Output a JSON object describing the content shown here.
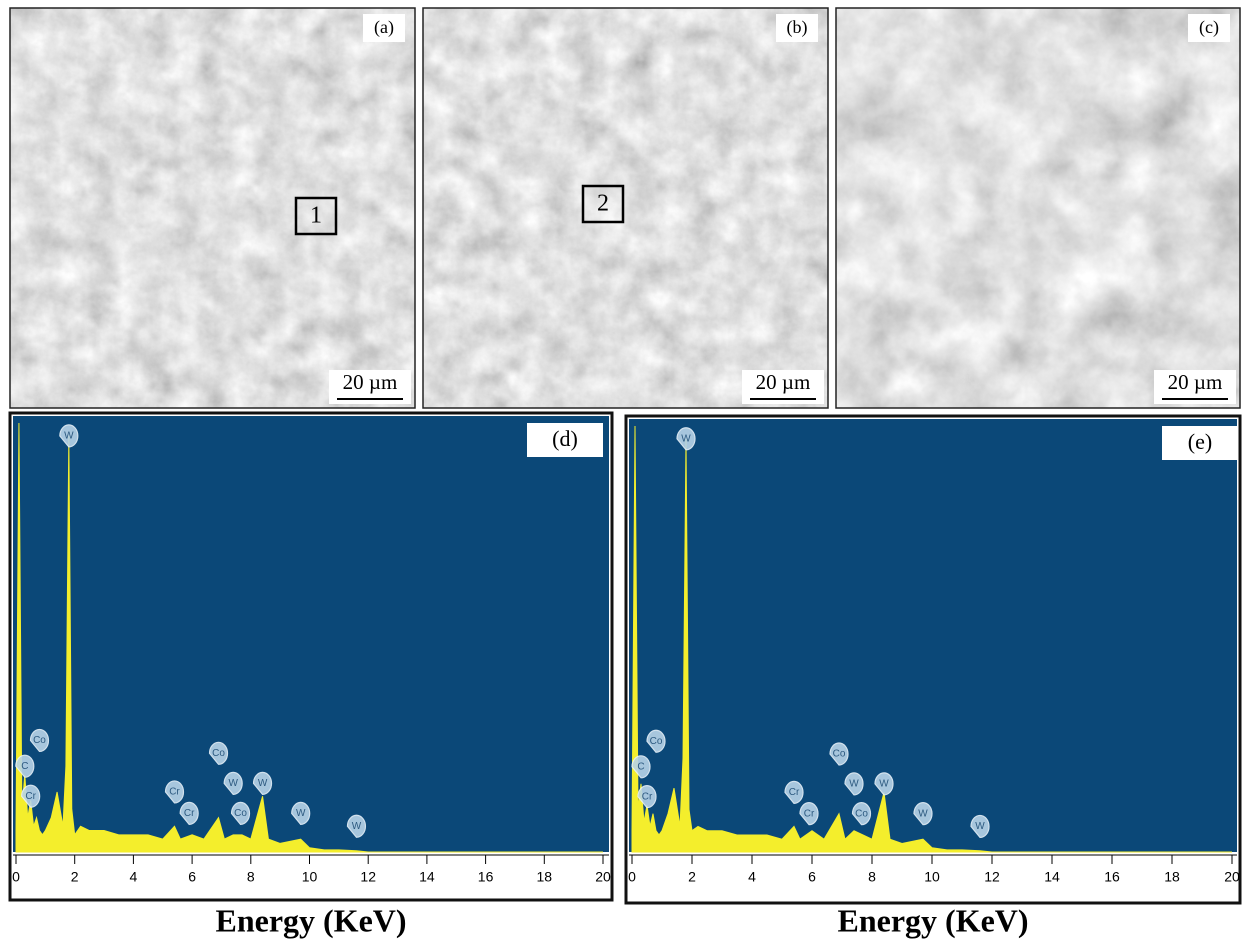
{
  "images": [
    {
      "label": "(a)",
      "scale_bar": "20 µm",
      "region": "1"
    },
    {
      "label": "(b)",
      "scale_bar": "20 µm",
      "region": "2"
    },
    {
      "label": "(c)",
      "scale_bar": "20 µm"
    }
  ],
  "chart_data": [
    {
      "type": "area",
      "label": "(d)",
      "x_label": "Energy (KeV)",
      "color": "#f4ee2c",
      "x": [
        0,
        0.1,
        0.2,
        0.3,
        0.4,
        0.5,
        0.6,
        0.7,
        0.8,
        0.9,
        1.0,
        1.2,
        1.4,
        1.6,
        1.7,
        1.8,
        1.9,
        2.0,
        2.2,
        2.5,
        3,
        3.5,
        4,
        4.5,
        5,
        5.4,
        5.6,
        6,
        6.4,
        6.9,
        7.1,
        7.4,
        7.7,
        8,
        8.4,
        8.6,
        9,
        9.7,
        10,
        10.5,
        11,
        11.6,
        12,
        13,
        14,
        16,
        18,
        20
      ],
      "values": [
        5,
        100,
        10,
        18,
        8,
        12,
        6,
        8,
        5,
        4,
        5,
        8,
        14,
        6,
        20,
        97,
        10,
        4,
        6,
        5,
        5,
        4,
        4,
        4,
        3,
        6,
        3,
        4,
        3,
        8,
        3,
        4,
        4,
        3,
        13,
        3,
        2,
        3,
        1,
        0.5,
        0.5,
        0.3,
        0,
        0,
        0,
        0,
        0,
        0
      ],
      "xlim": [
        0,
        20
      ],
      "xticks": [
        0,
        2,
        4,
        6,
        8,
        10,
        12,
        14,
        16,
        18,
        20
      ],
      "ylim": [
        0,
        100
      ],
      "peaks": [
        {
          "label": "C",
          "x": 0.3,
          "y": 20
        },
        {
          "label": "Co",
          "x": 0.8,
          "y": 26
        },
        {
          "label": "Cr",
          "x": 0.5,
          "y": 13
        },
        {
          "label": "W",
          "x": 1.8,
          "y": 97
        },
        {
          "label": "Cr",
          "x": 5.4,
          "y": 14
        },
        {
          "label": "Cr",
          "x": 5.9,
          "y": 9
        },
        {
          "label": "Co",
          "x": 6.9,
          "y": 23
        },
        {
          "label": "W",
          "x": 7.4,
          "y": 16
        },
        {
          "label": "Co",
          "x": 7.65,
          "y": 9
        },
        {
          "label": "W",
          "x": 8.4,
          "y": 16
        },
        {
          "label": "W",
          "x": 9.7,
          "y": 9
        },
        {
          "label": "W",
          "x": 11.6,
          "y": 6
        }
      ]
    },
    {
      "type": "area",
      "label": "(e)",
      "x_label": "Energy (KeV)",
      "color": "#f4ee2c",
      "x": [
        0,
        0.1,
        0.2,
        0.3,
        0.4,
        0.5,
        0.6,
        0.7,
        0.8,
        0.9,
        1.0,
        1.2,
        1.4,
        1.6,
        1.7,
        1.8,
        1.9,
        2.0,
        2.2,
        2.5,
        3,
        3.5,
        4,
        4.5,
        5,
        5.4,
        5.6,
        6,
        6.4,
        6.9,
        7.1,
        7.4,
        7.7,
        8,
        8.4,
        8.6,
        9,
        9.7,
        10,
        10.5,
        11,
        11.6,
        12,
        13,
        14,
        16,
        18,
        20
      ],
      "values": [
        5,
        100,
        10,
        16,
        7,
        11,
        6,
        9,
        5,
        4,
        5,
        9,
        15,
        6,
        22,
        97,
        10,
        5,
        6,
        5,
        5,
        4,
        4,
        4,
        3,
        6,
        3,
        5,
        3,
        9,
        3,
        5,
        4,
        3,
        14,
        3,
        2,
        3,
        1,
        0.5,
        0.5,
        0.3,
        0,
        0,
        0,
        0,
        0,
        0
      ],
      "xlim": [
        0,
        20
      ],
      "xticks": [
        0,
        2,
        4,
        6,
        8,
        10,
        12,
        14,
        16,
        18,
        20
      ],
      "ylim": [
        0,
        100
      ],
      "peaks": [
        {
          "label": "C",
          "x": 0.3,
          "y": 20
        },
        {
          "label": "Co",
          "x": 0.8,
          "y": 26
        },
        {
          "label": "Cr",
          "x": 0.5,
          "y": 13
        },
        {
          "label": "W",
          "x": 1.8,
          "y": 97
        },
        {
          "label": "Cr",
          "x": 5.4,
          "y": 14
        },
        {
          "label": "Cr",
          "x": 5.9,
          "y": 9
        },
        {
          "label": "Co",
          "x": 6.9,
          "y": 23
        },
        {
          "label": "W",
          "x": 7.4,
          "y": 16
        },
        {
          "label": "Co",
          "x": 7.65,
          "y": 9
        },
        {
          "label": "W",
          "x": 8.4,
          "y": 16
        },
        {
          "label": "W",
          "x": 9.7,
          "y": 9
        },
        {
          "label": "W",
          "x": 11.6,
          "y": 6
        }
      ]
    }
  ]
}
